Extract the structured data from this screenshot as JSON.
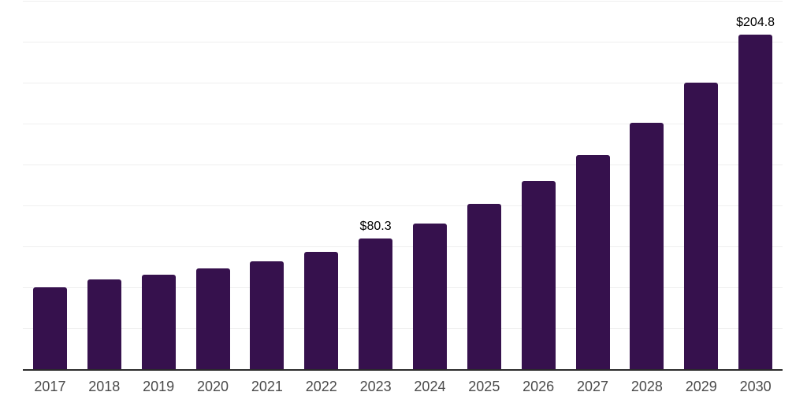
{
  "chart_data": {
    "type": "bar",
    "title": "",
    "xlabel": "",
    "ylabel": "",
    "categories": [
      "2017",
      "2018",
      "2019",
      "2020",
      "2021",
      "2022",
      "2023",
      "2024",
      "2025",
      "2026",
      "2027",
      "2028",
      "2029",
      "2030"
    ],
    "values": [
      50.7,
      55.5,
      58.4,
      62.2,
      66.5,
      72.2,
      80.3,
      89.5,
      101.3,
      115.2,
      131.1,
      151.2,
      175.6,
      204.8
    ],
    "data_labels": {
      "2023": "$80.3",
      "2030": "$204.8"
    },
    "currency_prefix": "$",
    "ylim": [
      0,
      225
    ],
    "gridline_step": 25,
    "grid": "horizontal",
    "legend_position": "none",
    "y_tick_labels_visible": false
  },
  "colors": {
    "bar_fill": "#36114D",
    "gridline": "#efefef",
    "axis_line": "#2b2b2b",
    "x_label_text": "#4a4a4a",
    "value_label_text": "#000000",
    "background": "#ffffff"
  }
}
